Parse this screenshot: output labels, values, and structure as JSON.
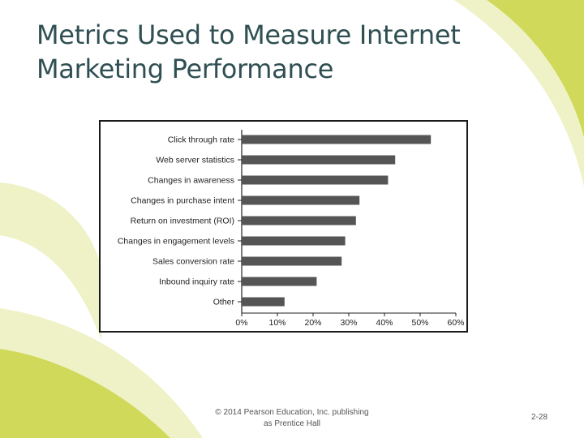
{
  "slide": {
    "title_line1": "Metrics Used to Measure Internet",
    "title_line2": "Marketing Performance",
    "copyright_line1": "© 2014 Pearson Education, Inc. publishing",
    "copyright_line2": "as Prentice Hall",
    "page_number": "2-28",
    "colors": {
      "title": "#2f4f52",
      "accent_green": "#c8d23c",
      "accent_light": "#eef2c6"
    }
  },
  "chart_data": {
    "type": "bar",
    "orientation": "horizontal",
    "categories": [
      "Click through rate",
      "Web server statistics",
      "Changes in awareness",
      "Changes in purchase intent",
      "Return on investment (ROI)",
      "Changes in engagement levels",
      "Sales conversion rate",
      "Inbound inquiry rate",
      "Other"
    ],
    "values": [
      53,
      43,
      41,
      33,
      32,
      29,
      28,
      21,
      12
    ],
    "unit": "%",
    "xlim": [
      0,
      60
    ],
    "xticks": [
      "0%",
      "10%",
      "20%",
      "30%",
      "40%",
      "50%",
      "60%"
    ],
    "grid": false,
    "bar_color": "#555555"
  }
}
